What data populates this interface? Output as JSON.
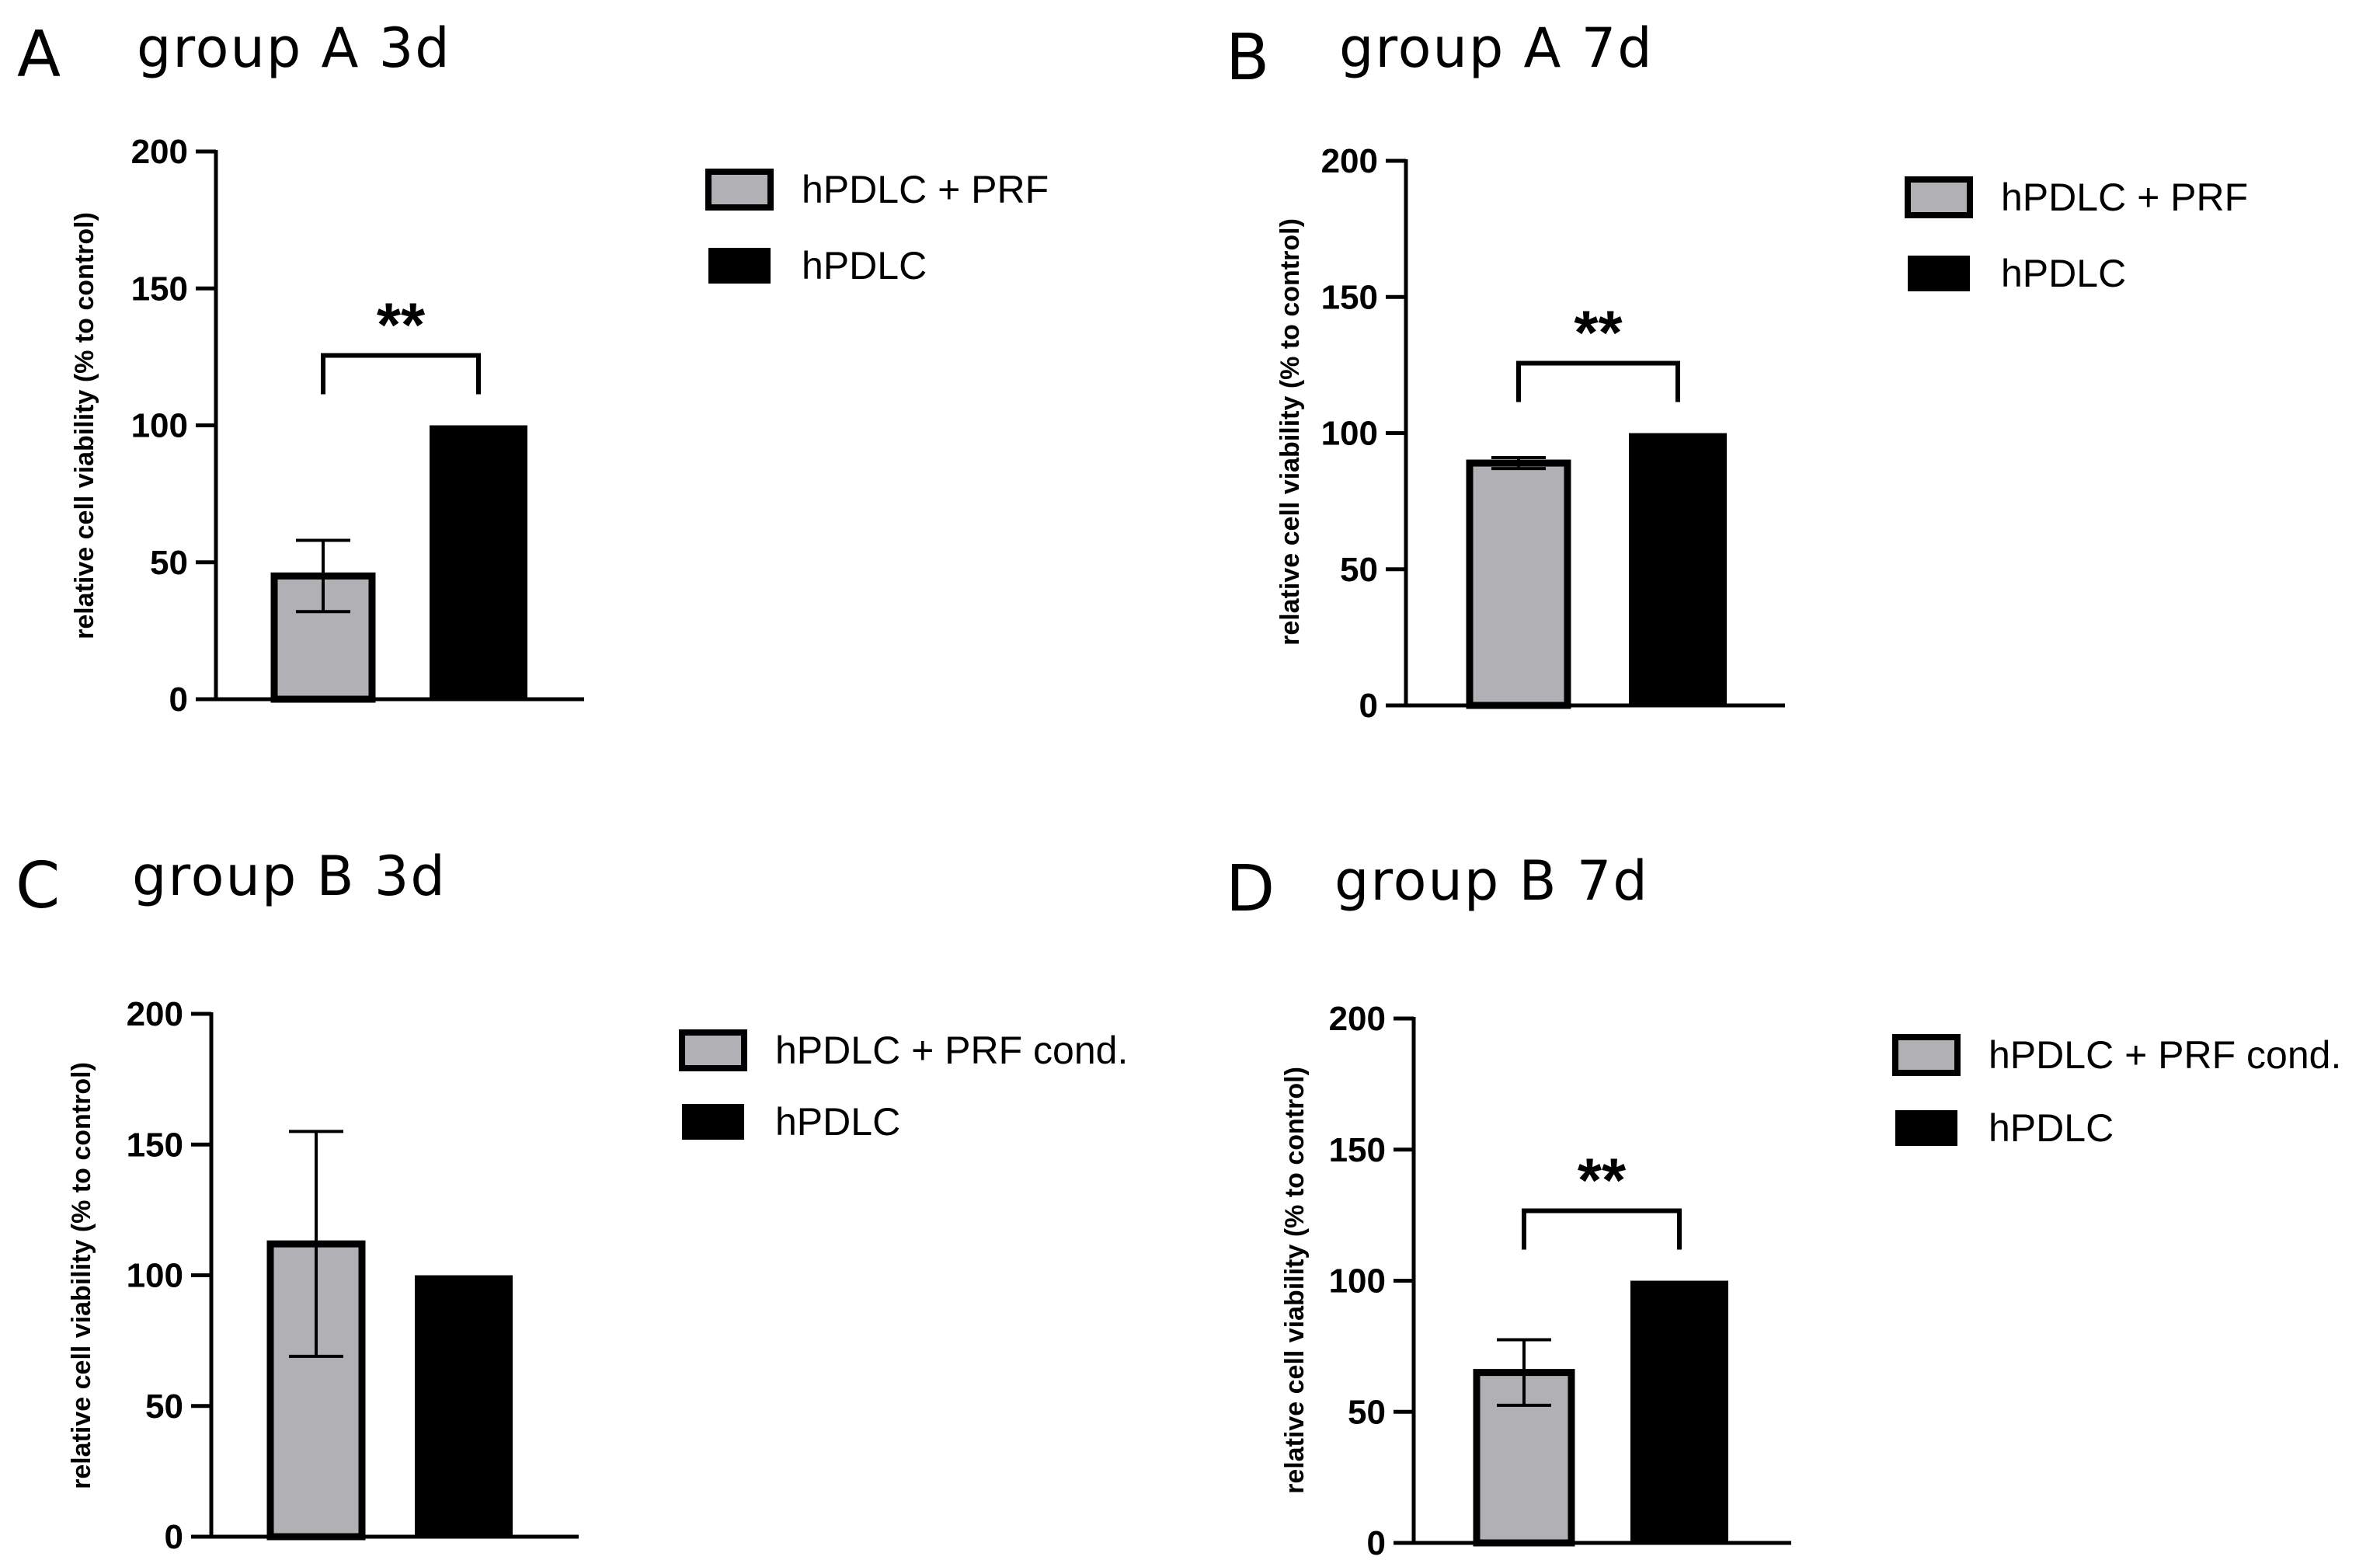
{
  "colors": {
    "prf_fill": "#b1b1b5",
    "control_fill": "#000000",
    "stroke": "#000000"
  },
  "chart_data": [
    {
      "panel": "A",
      "title": "group A 3d",
      "type": "bar",
      "ylabel": "relative cell viability (% to control)",
      "xlabel": "",
      "ylim": [
        0,
        200
      ],
      "yticks": [
        "0",
        "50",
        "100",
        "150",
        "200"
      ],
      "categories": [
        "hPDLC + PRF",
        "hPDLC"
      ],
      "values": [
        45,
        100
      ],
      "errors": [
        13,
        null
      ],
      "legend": [
        {
          "label": "hPDLC + PRF",
          "color": "#b1b1b5"
        },
        {
          "label": "hPDLC",
          "color": "#000000"
        }
      ],
      "significance": "**"
    },
    {
      "panel": "B",
      "title": "group A 7d",
      "type": "bar",
      "ylabel": "relative cell viability (% to control)",
      "xlabel": "",
      "ylim": [
        0,
        200
      ],
      "yticks": [
        "0",
        "50",
        "100",
        "150",
        "200"
      ],
      "categories": [
        "hPDLC + PRF",
        "hPDLC"
      ],
      "values": [
        89,
        100
      ],
      "errors": [
        2,
        null
      ],
      "legend": [
        {
          "label": "hPDLC + PRF",
          "color": "#b1b1b5"
        },
        {
          "label": "hPDLC",
          "color": "#000000"
        }
      ],
      "significance": "**"
    },
    {
      "panel": "C",
      "title": "group B 3d",
      "type": "bar",
      "ylabel": "relative cell viability (% to control)",
      "xlabel": "",
      "ylim": [
        0,
        200
      ],
      "yticks": [
        "0",
        "50",
        "100",
        "150",
        "200"
      ],
      "categories": [
        "hPDLC + PRF cond.",
        "hPDLC"
      ],
      "values": [
        112,
        100
      ],
      "errors": [
        43,
        null
      ],
      "legend": [
        {
          "label": "hPDLC + PRF cond.",
          "color": "#b1b1b5"
        },
        {
          "label": "hPDLC",
          "color": "#000000"
        }
      ],
      "significance": null
    },
    {
      "panel": "D",
      "title": "group B 7d",
      "type": "bar",
      "ylabel": "relative cell viability (% to control)",
      "xlabel": "",
      "ylim": [
        0,
        200
      ],
      "yticks": [
        "0",
        "50",
        "100",
        "150",
        "200"
      ],
      "categories": [
        "hPDLC + PRF cond.",
        "hPDLC"
      ],
      "values": [
        65,
        100
      ],
      "errors": [
        12.5,
        null
      ],
      "legend": [
        {
          "label": "hPDLC + PRF cond.",
          "color": "#b1b1b5"
        },
        {
          "label": "hPDLC",
          "color": "#000000"
        }
      ],
      "significance": "**"
    }
  ]
}
